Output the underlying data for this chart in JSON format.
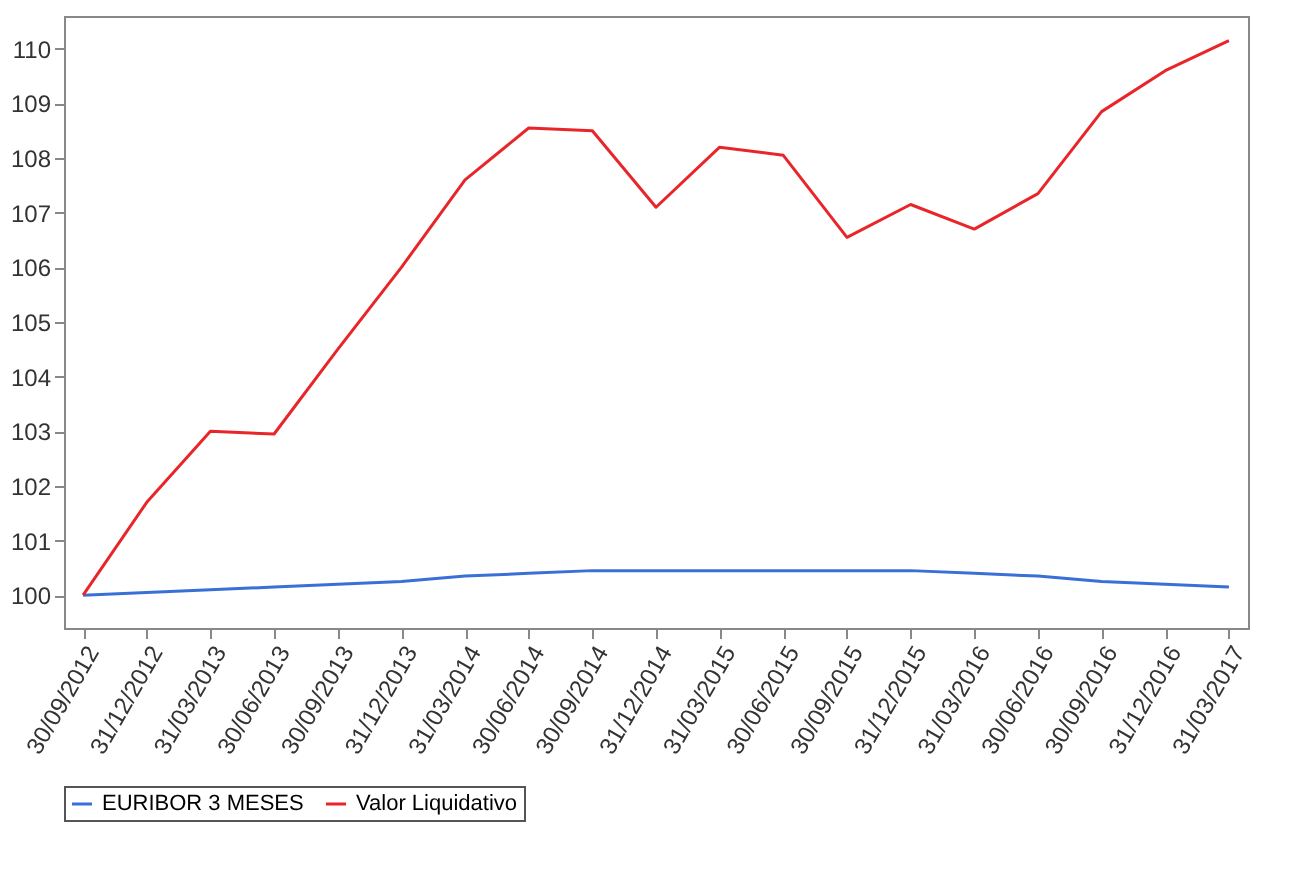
{
  "chart_data": {
    "type": "line",
    "categories": [
      "30/09/2012",
      "31/12/2012",
      "31/03/2013",
      "30/06/2013",
      "30/09/2013",
      "31/12/2013",
      "31/03/2014",
      "30/06/2014",
      "30/09/2014",
      "31/12/2014",
      "31/03/2015",
      "30/06/2015",
      "30/09/2015",
      "31/12/2015",
      "31/03/2016",
      "30/06/2016",
      "30/09/2016",
      "31/12/2016",
      "31/03/2017"
    ],
    "series": [
      {
        "name": "EURIBOR 3 MESES",
        "color": "#3a6fd8",
        "values": [
          100,
          100.05,
          100.1,
          100.15,
          100.2,
          100.25,
          100.35,
          100.4,
          100.45,
          100.45,
          100.45,
          100.45,
          100.45,
          100.45,
          100.4,
          100.35,
          100.25,
          100.2,
          100.15
        ]
      },
      {
        "name": "Valor Liquidativo",
        "color": "#e8262a",
        "values": [
          100,
          101.7,
          103.0,
          102.95,
          104.5,
          106.0,
          107.6,
          108.55,
          108.5,
          107.1,
          108.2,
          108.05,
          106.55,
          107.15,
          106.7,
          107.35,
          108.85,
          109.6,
          110.15
        ]
      }
    ],
    "ylim": [
      99.4,
      110.6
    ],
    "yticks": [
      100,
      101,
      102,
      103,
      104,
      105,
      106,
      107,
      108,
      109,
      110
    ],
    "legend": "bottom",
    "marker": "none",
    "line_style": "solid"
  }
}
